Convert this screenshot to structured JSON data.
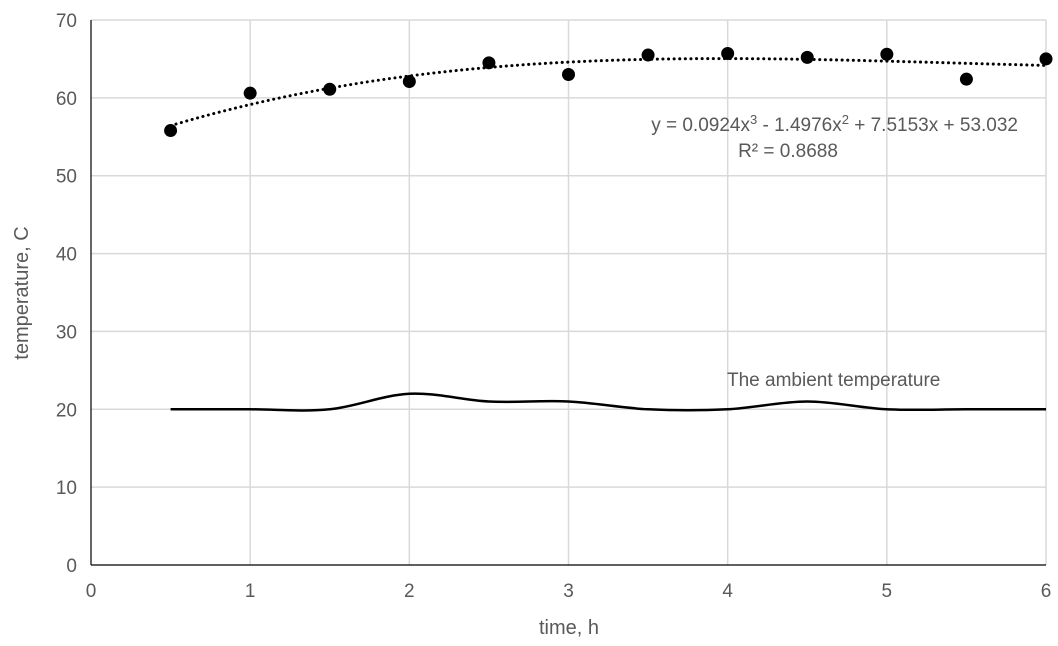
{
  "chart_data": {
    "type": "scatter",
    "xlabel": "time, h",
    "ylabel": "temperature, C",
    "xlim": [
      0,
      6
    ],
    "ylim": [
      0,
      70
    ],
    "xticks": [
      "0",
      "1",
      "2",
      "3",
      "4",
      "5",
      "6"
    ],
    "yticks": [
      "0",
      "10",
      "20",
      "30",
      "40",
      "50",
      "60",
      "70"
    ],
    "grid": true,
    "series": [
      {
        "kind": "scatter",
        "x": [
          0.5,
          1.0,
          1.5,
          2.0,
          2.5,
          3.0,
          3.5,
          4.0,
          4.5,
          5.0,
          5.5,
          6.0
        ],
        "y": [
          55.8,
          60.6,
          61.1,
          62.1,
          64.5,
          63.0,
          65.5,
          65.7,
          65.2,
          65.6,
          62.4,
          65.0
        ]
      },
      {
        "kind": "line",
        "label": "The ambient temperature",
        "x": [
          0.5,
          1.0,
          1.5,
          2.0,
          2.5,
          3.0,
          3.5,
          4.0,
          4.5,
          5.0,
          5.5,
          6.0
        ],
        "y": [
          20,
          20,
          20,
          22,
          21,
          21,
          20,
          20,
          21,
          20,
          20,
          20
        ]
      }
    ],
    "trendline": {
      "type": "polynomial",
      "order": 3,
      "coefficients": [
        0.0924,
        -1.4976,
        7.5153,
        53.032
      ],
      "x_range": [
        0.5,
        6.0
      ],
      "equation_prefix": "y = 0.0924x",
      "equation_exp1": "3",
      "equation_mid1": " - 1.4976x",
      "equation_exp2": "2",
      "equation_suffix": " + 7.5153x + 53.032",
      "r_squared": "R² = 0.8688"
    },
    "colors": {
      "markers": "#000000",
      "line": "#000000",
      "grid": "#d9d9d9",
      "text": "#595959"
    }
  }
}
